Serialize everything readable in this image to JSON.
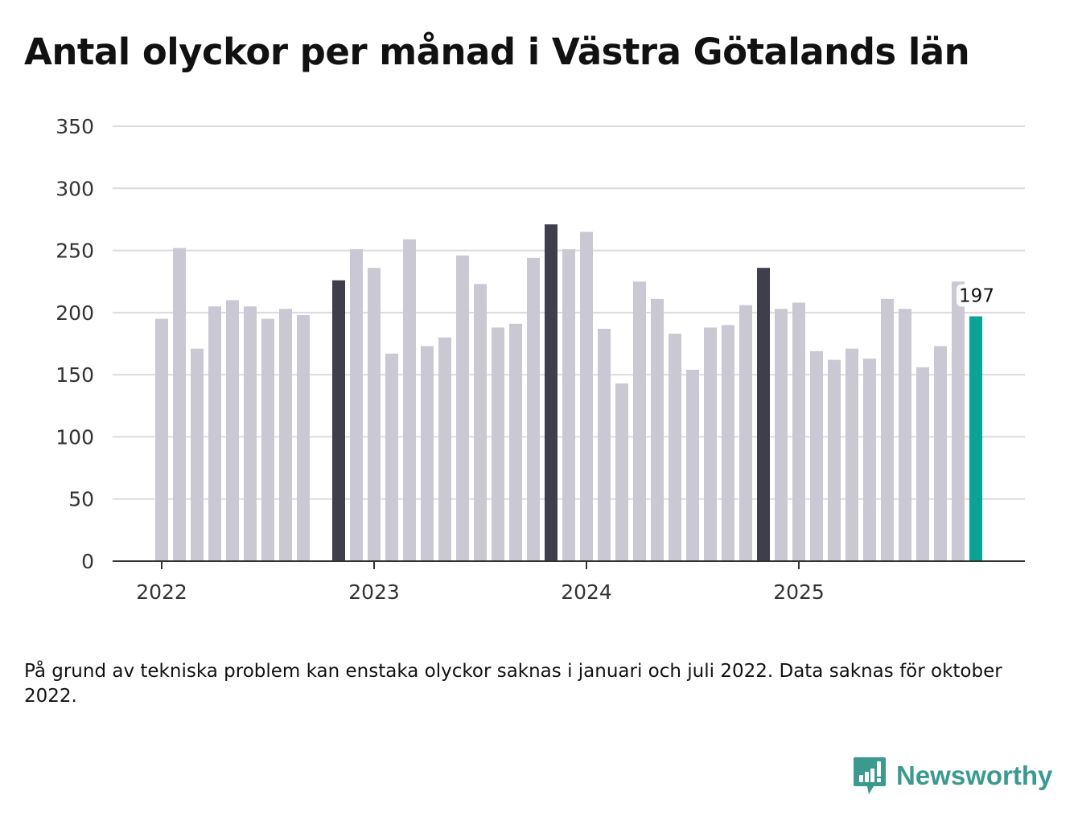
{
  "title": "Antal olyckor per månad i Västra Götalands län",
  "note": "På grund av tekniska problem kan enstaka olyckor saknas i januari och juli 2022. Data saknas för oktober 2022.",
  "brand": {
    "name": "Newsworthy",
    "color": "#3a9a90"
  },
  "colors": {
    "default": "#c9c8d3",
    "highlight": "#3f3e4c",
    "current": "#0aa398",
    "grid": "#dcdcdc",
    "axis": "#333333"
  },
  "chart_data": {
    "type": "bar",
    "title": "Antal olyckor per månad i Västra Götalands län",
    "xlabel": "",
    "ylabel": "",
    "ylim": [
      0,
      350
    ],
    "yticks": [
      0,
      50,
      100,
      150,
      200,
      250,
      300,
      350
    ],
    "xtick_labels": [
      "2022",
      "2023",
      "2024",
      "2025"
    ],
    "grid": true,
    "start": "2022-01",
    "categories": [
      "2022-01",
      "2022-02",
      "2022-03",
      "2022-04",
      "2022-05",
      "2022-06",
      "2022-07",
      "2022-08",
      "2022-09",
      "2022-10",
      "2022-11",
      "2022-12",
      "2023-01",
      "2023-02",
      "2023-03",
      "2023-04",
      "2023-05",
      "2023-06",
      "2023-07",
      "2023-08",
      "2023-09",
      "2023-10",
      "2023-11",
      "2023-12",
      "2024-01",
      "2024-02",
      "2024-03",
      "2024-04",
      "2024-05",
      "2024-06",
      "2024-07",
      "2024-08",
      "2024-09",
      "2024-10",
      "2024-11",
      "2024-12",
      "2025-01",
      "2025-02",
      "2025-03",
      "2025-04",
      "2025-05",
      "2025-06",
      "2025-07",
      "2025-08",
      "2025-09",
      "2025-10",
      "2025-11"
    ],
    "values": [
      195,
      252,
      171,
      205,
      210,
      205,
      195,
      203,
      198,
      null,
      226,
      251,
      236,
      167,
      259,
      173,
      180,
      246,
      223,
      188,
      191,
      244,
      271,
      251,
      265,
      187,
      143,
      225,
      211,
      183,
      154,
      188,
      190,
      206,
      236,
      203,
      208,
      169,
      162,
      171,
      163,
      211,
      203,
      156,
      173,
      225,
      197
    ],
    "highlight": [
      "2022-11",
      "2023-11",
      "2024-11"
    ],
    "current": "2025-11",
    "data_label": "197"
  }
}
